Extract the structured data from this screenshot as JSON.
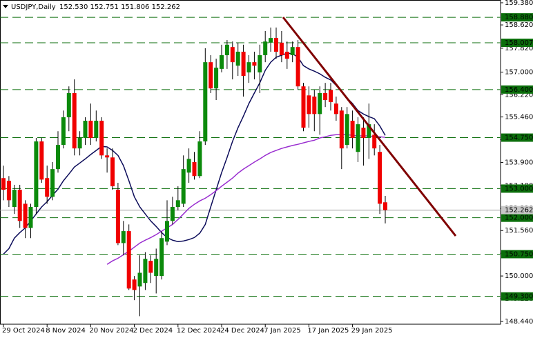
{
  "chart_data": {
    "type": "candlestick",
    "title": "USDJPY,Daily",
    "ohlc_text": "152.530 152.751 151.806 152.262",
    "categories": [
      "29 Oct 2024",
      null,
      null,
      null,
      null,
      null,
      null,
      null,
      "8 Nov 2024",
      null,
      null,
      null,
      null,
      null,
      null,
      null,
      "20 Nov 2024",
      null,
      null,
      null,
      null,
      null,
      null,
      null,
      "2 Dec 2024",
      null,
      null,
      null,
      null,
      null,
      null,
      null,
      "12 Dec 2024",
      null,
      null,
      null,
      null,
      null,
      null,
      null,
      "24 Dec 2024",
      null,
      null,
      null,
      null,
      null,
      null,
      null,
      "7 Jan 2025",
      null,
      null,
      null,
      null,
      null,
      null,
      null,
      "17 Jan 2025",
      null,
      null,
      null,
      null,
      null,
      null,
      null,
      "29 Jan 2025",
      null,
      null,
      null,
      null,
      null,
      null
    ],
    "open": [
      153.36,
      153.27,
      152.37,
      152.96,
      152.48,
      151.65,
      152.37,
      154.62,
      153.36,
      152.72,
      153.67,
      154.5,
      155.45,
      156.28,
      154.38,
      154.74,
      155.33,
      154.74,
      155.33,
      154.14,
      154.07,
      152.96,
      151.13,
      151.54,
      149.88,
      149.64,
      149.76,
      150.52,
      150.0,
      150.0,
      151.18,
      151.89,
      152.37,
      152.48,
      153.55,
      153.91,
      153.43,
      154.62,
      157.34,
      156.44,
      157.11,
      157.58,
      157.86,
      157.22,
      157.7,
      156.99,
      157.34,
      156.99,
      157.58,
      158.01,
      158.17,
      158.01,
      157.7,
      157.58,
      157.86,
      156.51,
      156.2,
      156.16,
      155.56,
      156.28,
      156.39,
      155.92,
      155.68,
      154.5,
      155.33,
      154.26,
      155.09,
      154.74,
      154.85,
      154.26,
      152.53
    ],
    "high": [
      153.79,
      153.43,
      153.13,
      153.13,
      152.6,
      152.48,
      154.74,
      154.74,
      153.79,
      153.91,
      154.97,
      155.68,
      156.51,
      156.75,
      154.97,
      155.45,
      155.92,
      155.68,
      155.45,
      154.38,
      154.38,
      153.2,
      151.89,
      151.77,
      150.0,
      150.71,
      150.82,
      150.71,
      150.94,
      151.54,
      152.6,
      152.72,
      153.08,
      154.14,
      154.38,
      154.26,
      154.97,
      157.82,
      157.58,
      157.46,
      157.94,
      158.1,
      158.05,
      158.01,
      157.94,
      157.58,
      157.7,
      157.94,
      158.41,
      158.53,
      158.53,
      158.41,
      158.05,
      158.05,
      158.1,
      156.63,
      156.51,
      156.39,
      156.51,
      156.63,
      156.63,
      156.16,
      155.8,
      155.8,
      155.68,
      155.45,
      155.45,
      155.92,
      155.21,
      154.5,
      152.751
    ],
    "low": [
      152.6,
      152.37,
      152.13,
      151.65,
      151.3,
      151.3,
      152.13,
      153.2,
      152.48,
      152.6,
      153.55,
      154.38,
      154.97,
      154.14,
      154.14,
      154.5,
      154.5,
      154.62,
      154.02,
      153.55,
      152.96,
      151.06,
      150.71,
      149.52,
      149.17,
      148.62,
      149.52,
      149.76,
      149.4,
      149.88,
      151.06,
      151.77,
      152.25,
      152.37,
      153.2,
      153.31,
      153.36,
      154.5,
      156.28,
      156.04,
      156.99,
      157.11,
      156.75,
      156.87,
      156.16,
      156.63,
      156.75,
      156.28,
      157.34,
      157.7,
      157.46,
      157.34,
      157.11,
      157.34,
      156.39,
      154.97,
      155.09,
      154.97,
      154.85,
      155.8,
      155.68,
      155.33,
      153.67,
      154.38,
      154.38,
      153.91,
      153.79,
      154.02,
      154.14,
      152.13,
      151.806
    ],
    "close": [
      152.96,
      152.6,
      152.96,
      151.89,
      151.65,
      152.37,
      154.62,
      153.31,
      152.72,
      153.67,
      154.5,
      155.45,
      156.28,
      154.38,
      154.74,
      155.33,
      154.74,
      155.33,
      154.14,
      154.07,
      153.08,
      151.13,
      151.54,
      149.57,
      149.52,
      150.11,
      150.59,
      150.11,
      150.59,
      151.3,
      151.89,
      152.37,
      152.6,
      153.67,
      154.02,
      153.43,
      154.62,
      157.34,
      156.44,
      157.15,
      157.58,
      157.94,
      157.34,
      157.7,
      156.87,
      157.34,
      157.22,
      157.58,
      158.05,
      158.17,
      157.7,
      157.58,
      157.46,
      157.86,
      156.51,
      155.09,
      155.56,
      155.56,
      156.28,
      156.04,
      155.97,
      155.56,
      154.38,
      155.56,
      154.74,
      155.21,
      154.74,
      155.21,
      154.38,
      152.48,
      152.262
    ],
    "up_color": "#0b8a0b",
    "down_color": "#f00000",
    "series": [
      {
        "color": "#0c0c5a",
        "values": [
          150.75,
          150.94,
          151.3,
          151.49,
          151.65,
          151.89,
          152.13,
          152.37,
          152.55,
          152.77,
          152.98,
          153.27,
          153.5,
          153.74,
          153.88,
          154.02,
          154.17,
          154.31,
          154.45,
          154.43,
          154.31,
          154.14,
          153.79,
          153.27,
          152.72,
          152.37,
          152.13,
          151.89,
          151.7,
          151.49,
          151.32,
          151.23,
          151.18,
          151.2,
          151.25,
          151.32,
          151.47,
          151.77,
          152.37,
          152.96,
          153.55,
          154.07,
          154.62,
          155.09,
          155.49,
          155.92,
          156.28,
          156.63,
          157.06,
          157.34,
          157.51,
          157.58,
          157.65,
          157.63,
          157.51,
          157.22,
          157.11,
          157.03,
          156.94,
          156.82,
          156.73,
          156.54,
          156.32,
          156.11,
          155.92,
          155.68,
          155.56,
          155.47,
          155.4,
          155.15,
          154.83
        ]
      },
      {
        "color": "#9a2fd0",
        "values": [
          null,
          null,
          null,
          null,
          null,
          null,
          null,
          null,
          null,
          null,
          null,
          null,
          null,
          null,
          null,
          null,
          null,
          null,
          null,
          150.4,
          150.52,
          150.61,
          150.73,
          150.85,
          150.99,
          151.13,
          151.23,
          151.32,
          151.42,
          151.54,
          151.65,
          151.77,
          151.94,
          152.13,
          152.32,
          152.46,
          152.58,
          152.67,
          152.79,
          152.93,
          153.08,
          153.22,
          153.36,
          153.53,
          153.67,
          153.79,
          153.91,
          154.02,
          154.14,
          154.24,
          154.31,
          154.38,
          154.43,
          154.48,
          154.52,
          154.57,
          154.62,
          154.66,
          154.74,
          154.78,
          154.83,
          154.85,
          154.85,
          154.85,
          154.83,
          154.81,
          154.81,
          154.81,
          154.78,
          154.78,
          154.76
        ]
      }
    ],
    "levels": [
      {
        "value": 158.88,
        "label": "158.880"
      },
      {
        "value": 158.007,
        "label": "158.007"
      },
      {
        "value": 156.4,
        "label": "156.400"
      },
      {
        "value": 154.75,
        "label": "154.750"
      },
      {
        "value": 153,
        "label": "153.000"
      },
      {
        "value": 152,
        "label": "152.000"
      },
      {
        "value": 150.75,
        "label": "150.750"
      },
      {
        "value": 149.3,
        "label": "149.300"
      }
    ],
    "level_color": "#0b6e0b",
    "current_price": {
      "value": 152.262,
      "label": "152.262"
    },
    "ylim": [
      148.345,
      159.475
    ],
    "yticks": [
      {
        "value": 159.38,
        "label": "159.380"
      },
      {
        "value": 158.62,
        "label": "158.620"
      },
      {
        "value": 157.82,
        "label": "157.820"
      },
      {
        "value": 157,
        "label": "157.000"
      },
      {
        "value": 156.22,
        "label": "156.220"
      },
      {
        "value": 155.46,
        "label": "155.460"
      },
      {
        "value": 154.68,
        "label": "154.680"
      },
      {
        "value": 153.9,
        "label": "153.900"
      },
      {
        "value": 153.1,
        "label": "153.100"
      },
      {
        "value": 152.32,
        "label": "152.320"
      },
      {
        "value": 151.56,
        "label": "151.560"
      },
      {
        "value": 150.78,
        "label": "150.780"
      },
      {
        "value": 150,
        "label": "150.000"
      },
      {
        "value": 149.22,
        "label": "149.220"
      },
      {
        "value": 148.44,
        "label": "148.440"
      }
    ]
  }
}
